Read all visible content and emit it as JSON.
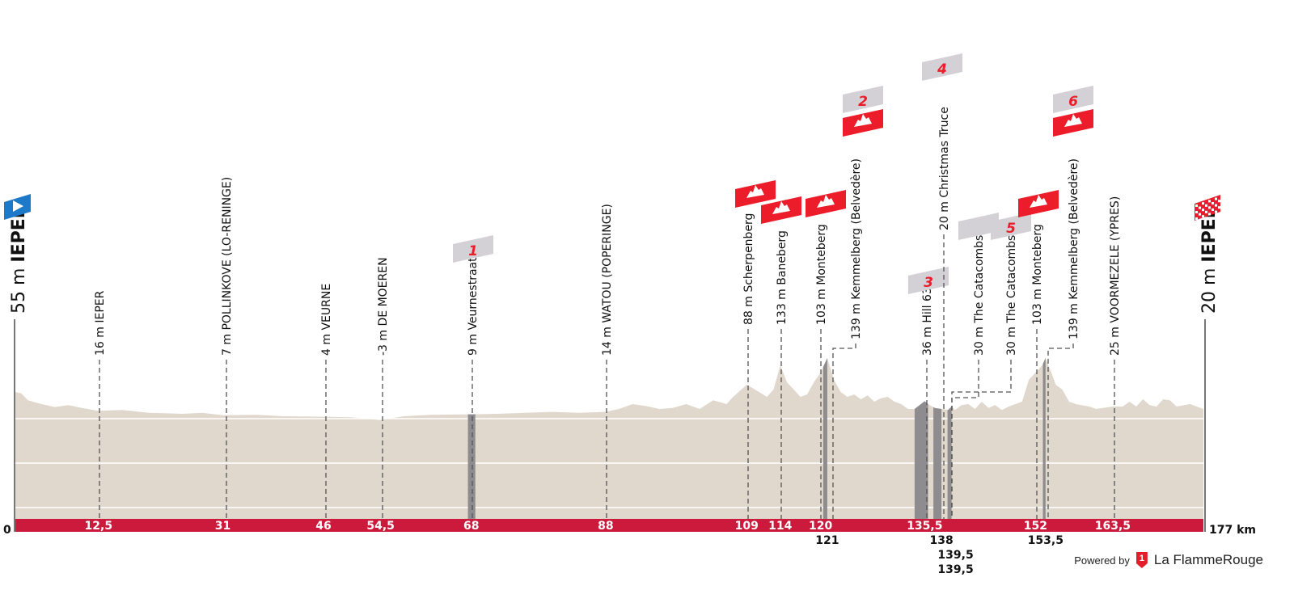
{
  "chart_data": {
    "type": "area",
    "title": "",
    "xlabel": "",
    "ylabel": "",
    "xlim": [
      0,
      177
    ],
    "x_unit": "km",
    "colors": {
      "profile": "#e0d7cd",
      "sector": "#8e8c8f",
      "band": "#cc1a3c",
      "climb_flag": "#ec1c2a",
      "sector_flag": "#d3d1d5",
      "start_flag": "#1d79c9"
    },
    "profile": [
      [
        0,
        55
      ],
      [
        1,
        52
      ],
      [
        2,
        38
      ],
      [
        4,
        30
      ],
      [
        6,
        24
      ],
      [
        8,
        28
      ],
      [
        10,
        22
      ],
      [
        12.5,
        16
      ],
      [
        16,
        18
      ],
      [
        20,
        12
      ],
      [
        25,
        10
      ],
      [
        28,
        12
      ],
      [
        31,
        7
      ],
      [
        36,
        8
      ],
      [
        40,
        5
      ],
      [
        46,
        4
      ],
      [
        50,
        3
      ],
      [
        54.5,
        -3
      ],
      [
        58,
        5
      ],
      [
        62,
        8
      ],
      [
        68,
        9
      ],
      [
        72,
        10
      ],
      [
        76,
        12
      ],
      [
        80,
        14
      ],
      [
        84,
        12
      ],
      [
        88,
        14
      ],
      [
        90,
        20
      ],
      [
        92,
        30
      ],
      [
        94,
        26
      ],
      [
        96,
        20
      ],
      [
        98,
        22
      ],
      [
        100,
        30
      ],
      [
        102,
        20
      ],
      [
        104,
        38
      ],
      [
        106,
        30
      ],
      [
        107,
        45
      ],
      [
        109,
        70
      ],
      [
        110,
        62
      ],
      [
        112,
        45
      ],
      [
        113,
        60
      ],
      [
        114,
        110
      ],
      [
        115,
        75
      ],
      [
        117,
        45
      ],
      [
        118,
        50
      ],
      [
        119,
        75
      ],
      [
        120,
        95
      ],
      [
        121,
        125
      ],
      [
        122,
        80
      ],
      [
        123,
        55
      ],
      [
        124,
        45
      ],
      [
        125,
        50
      ],
      [
        126,
        40
      ],
      [
        127,
        48
      ],
      [
        128,
        35
      ],
      [
        129,
        42
      ],
      [
        130,
        45
      ],
      [
        131,
        35
      ],
      [
        132,
        30
      ],
      [
        133,
        20
      ],
      [
        134,
        20
      ],
      [
        135.5,
        36
      ],
      [
        136,
        30
      ],
      [
        137,
        22
      ],
      [
        138,
        20
      ],
      [
        139,
        18
      ],
      [
        139.5,
        25
      ],
      [
        140,
        18
      ],
      [
        141,
        28
      ],
      [
        142,
        30
      ],
      [
        143,
        20
      ],
      [
        144,
        35
      ],
      [
        145,
        22
      ],
      [
        146,
        28
      ],
      [
        147,
        18
      ],
      [
        148,
        25
      ],
      [
        149,
        30
      ],
      [
        150,
        35
      ],
      [
        151,
        80
      ],
      [
        152,
        95
      ],
      [
        153,
        110
      ],
      [
        153.5,
        125
      ],
      [
        154.5,
        90
      ],
      [
        155,
        70
      ],
      [
        156,
        60
      ],
      [
        157,
        35
      ],
      [
        158,
        30
      ],
      [
        160,
        25
      ],
      [
        161,
        20
      ],
      [
        163.5,
        25
      ],
      [
        165,
        25
      ],
      [
        166,
        35
      ],
      [
        167,
        25
      ],
      [
        168,
        40
      ],
      [
        169,
        28
      ],
      [
        170,
        25
      ],
      [
        171,
        40
      ],
      [
        172,
        38
      ],
      [
        173,
        25
      ],
      [
        175,
        30
      ],
      [
        176,
        25
      ],
      [
        177,
        20
      ]
    ],
    "sectors": [
      [
        67.5,
        68.6
      ],
      [
        120.4,
        121
      ],
      [
        134,
        136
      ],
      [
        136.8,
        138
      ],
      [
        138.9,
        139.5
      ],
      [
        153.1,
        153.5
      ]
    ],
    "start": {
      "elevation_label": "55 m",
      "town": "IEPER",
      "km": "0"
    },
    "finish": {
      "elevation_label": "20 m",
      "town": "IEPER",
      "km": "177 km"
    },
    "markers": [
      {
        "km": 12.5,
        "label": "16 m IEPER",
        "km_label": "12,5",
        "flags": []
      },
      {
        "km": 31,
        "label": "7 m POLLINKOVE (LO-RENINGE)",
        "km_label": "31",
        "flags": []
      },
      {
        "km": 46,
        "label": "4 m VEURNE",
        "km_label": "46",
        "flags": []
      },
      {
        "km": 54.5,
        "label": "-3 m DE MOEREN",
        "km_label": "54,5",
        "flags": []
      },
      {
        "km": 68,
        "label": "9 m Veurnestraat",
        "km_label": "68",
        "flags": [
          {
            "type": "sector",
            "number": "1"
          }
        ]
      },
      {
        "km": 88,
        "label": "14 m WATOU (POPERINGE)",
        "km_label": "88",
        "flags": []
      },
      {
        "km": 109,
        "label": "88 m Scherpenberg",
        "km_label": "109",
        "flags": [
          {
            "type": "climb",
            "number": ""
          }
        ]
      },
      {
        "km": 114,
        "label": "133 m Baneberg",
        "km_label": "114",
        "flags": [
          {
            "type": "climb",
            "number": ""
          }
        ]
      },
      {
        "km": 120,
        "label": "103 m Monteberg",
        "km_label": "120",
        "flags": [
          {
            "type": "climb",
            "number": ""
          }
        ]
      },
      {
        "km": 121,
        "label": "139 m Kemmelberg (Belvedère)",
        "km_label": "121",
        "flags": [
          {
            "type": "climb",
            "number": ""
          },
          {
            "type": "sector",
            "number": "2"
          }
        ]
      },
      {
        "km": 135.5,
        "label": "36 m Hill 63",
        "km_label": "135,5",
        "flags": [
          {
            "type": "sector",
            "number": "3"
          }
        ]
      },
      {
        "km": 138,
        "label": "20 m Christmas Truce",
        "km_label": "138",
        "flags": [
          {
            "type": "sector",
            "number": "4"
          }
        ]
      },
      {
        "km": 139.5,
        "label": "30 m The Catacombs",
        "km_label": "139,5",
        "flags": [
          {
            "type": "sector",
            "number": ""
          }
        ]
      },
      {
        "km": 139.5,
        "label": "30 m The Catacombs",
        "km_label": "139,5",
        "flags": [
          {
            "type": "sector",
            "number": "5"
          }
        ]
      },
      {
        "km": 152,
        "label": "103 m Monteberg",
        "km_label": "152",
        "flags": [
          {
            "type": "climb",
            "number": ""
          }
        ]
      },
      {
        "km": 153.5,
        "label": "139 m Kemmelberg (Belvedère)",
        "km_label": "153,5",
        "flags": [
          {
            "type": "climb",
            "number": ""
          },
          {
            "type": "sector",
            "number": "6"
          }
        ]
      },
      {
        "km": 163.5,
        "label": "25 m VOORMEZELE (YPRES)",
        "km_label": "163,5",
        "flags": []
      }
    ]
  },
  "footer": {
    "powered_by": "Powered by",
    "brand": "La FlammeRouge",
    "logo_mark": "1"
  }
}
